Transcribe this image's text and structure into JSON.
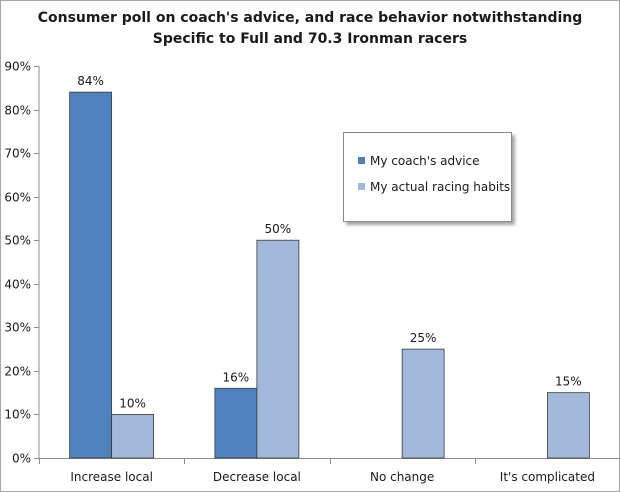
{
  "chart_data": {
    "type": "bar",
    "title_lines": [
      "Consumer poll on coach's advice, and race behavior notwithstanding",
      "Specific to Full and 70.3 Ironman racers"
    ],
    "categories": [
      "Increase local",
      "Decrease local",
      "No change",
      "It's complicated"
    ],
    "series": [
      {
        "name": "My coach's advice",
        "color": "#4f81bd",
        "values": [
          84,
          16,
          null,
          null
        ],
        "labels": [
          "84%",
          "16%",
          "",
          ""
        ]
      },
      {
        "name": "My actual racing habits",
        "color": "#a3b9dc",
        "values": [
          10,
          50,
          25,
          15
        ],
        "labels": [
          "10%",
          "50%",
          "25%",
          "15%"
        ]
      }
    ],
    "ylim": [
      0,
      90
    ],
    "yticks": [
      0,
      10,
      20,
      30,
      40,
      50,
      60,
      70,
      80,
      90
    ],
    "ytick_labels": [
      "0%",
      "10%",
      "20%",
      "30%",
      "40%",
      "50%",
      "60%",
      "70%",
      "80%",
      "90%"
    ],
    "grid": false,
    "legend_position": "top-right"
  }
}
